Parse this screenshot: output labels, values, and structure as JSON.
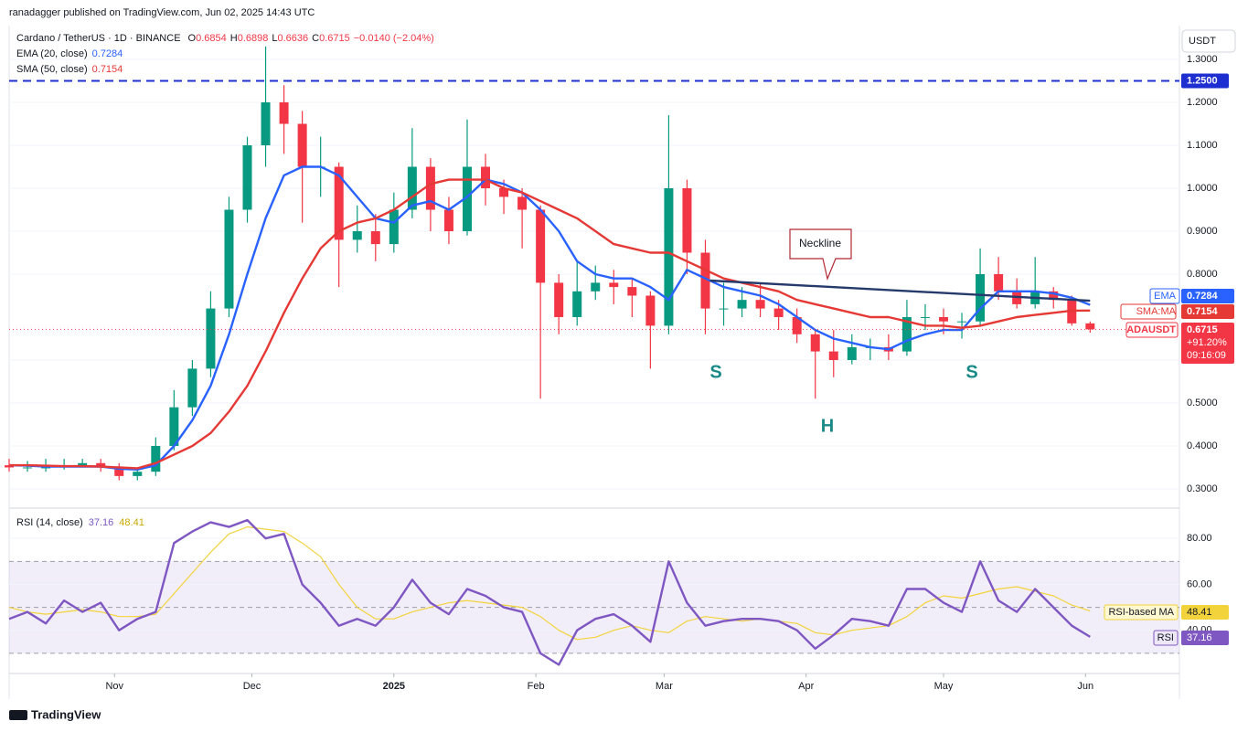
{
  "header": {
    "publisher": "ranadagger published on TradingView.com, Jun 02, 2025 14:43 UTC",
    "footer": "TradingView"
  },
  "chart_data": [
    {
      "type": "candlestick",
      "title": "Cardano / TetherUS · 1D · BINANCE",
      "legend_prefixes": [
        "O",
        "H",
        "L",
        "C"
      ],
      "change": "−0.0140 (−2.04%)",
      "currency": "USDT",
      "up_color": "#089981",
      "down_color": "#f23645",
      "grid": true,
      "x": [
        0,
        4,
        8,
        12,
        16,
        20,
        24,
        28,
        32,
        36,
        40,
        44,
        48,
        52,
        56,
        60,
        64,
        68,
        72,
        76,
        80,
        84,
        88,
        92,
        96,
        100,
        104,
        108,
        112,
        116,
        120,
        124,
        128,
        132,
        136,
        140,
        144,
        148,
        152,
        156,
        160,
        164,
        168,
        172,
        176,
        180,
        184,
        188,
        192,
        196,
        200,
        204,
        208,
        212,
        216,
        220,
        224,
        228,
        232,
        236
      ],
      "open": [
        0.355,
        0.35,
        0.35,
        0.35,
        0.355,
        0.36,
        0.35,
        0.33,
        0.34,
        0.4,
        0.49,
        0.58,
        0.72,
        0.95,
        1.1,
        1.2,
        1.15,
        1.05,
        1.05,
        0.88,
        0.9,
        0.87,
        0.95,
        1.05,
        0.95,
        0.9,
        1.05,
        1.0,
        0.98,
        0.95,
        0.78,
        0.7,
        0.76,
        0.78,
        0.77,
        0.75,
        0.68,
        1.0,
        0.85,
        0.72,
        0.72,
        0.74,
        0.72,
        0.7,
        0.66,
        0.62,
        0.6,
        0.63,
        0.63,
        0.62,
        0.7,
        0.7,
        0.69,
        0.69,
        0.8,
        0.76,
        0.73,
        0.76,
        0.74,
        0.6854
      ],
      "high": [
        0.37,
        0.365,
        0.37,
        0.37,
        0.37,
        0.37,
        0.36,
        0.35,
        0.42,
        0.53,
        0.6,
        0.76,
        0.98,
        1.12,
        1.33,
        1.24,
        1.18,
        1.12,
        1.06,
        0.96,
        0.94,
        0.99,
        1.14,
        1.07,
        0.98,
        1.16,
        1.08,
        1.02,
        1.0,
        0.96,
        0.8,
        0.83,
        0.82,
        0.81,
        0.79,
        0.76,
        1.17,
        1.02,
        0.88,
        0.78,
        0.77,
        0.78,
        0.74,
        0.72,
        0.67,
        0.67,
        0.66,
        0.65,
        0.66,
        0.74,
        0.73,
        0.72,
        0.71,
        0.86,
        0.84,
        0.79,
        0.84,
        0.77,
        0.75,
        0.6898
      ],
      "low": [
        0.34,
        0.34,
        0.34,
        0.345,
        0.35,
        0.34,
        0.32,
        0.32,
        0.33,
        0.39,
        0.47,
        0.56,
        0.7,
        0.92,
        1.05,
        1.08,
        0.92,
        0.98,
        0.77,
        0.85,
        0.83,
        0.85,
        0.93,
        0.9,
        0.87,
        0.89,
        0.96,
        0.94,
        0.86,
        0.51,
        0.66,
        0.68,
        0.74,
        0.73,
        0.7,
        0.58,
        0.66,
        0.8,
        0.66,
        0.68,
        0.7,
        0.7,
        0.67,
        0.64,
        0.51,
        0.56,
        0.59,
        0.6,
        0.6,
        0.61,
        0.67,
        0.66,
        0.65,
        0.68,
        0.74,
        0.72,
        0.72,
        0.72,
        0.68,
        0.6636
      ],
      "close": [
        0.35,
        0.35,
        0.35,
        0.355,
        0.36,
        0.35,
        0.33,
        0.34,
        0.4,
        0.49,
        0.58,
        0.72,
        0.95,
        1.1,
        1.2,
        1.15,
        1.05,
        1.05,
        0.88,
        0.9,
        0.87,
        0.95,
        1.05,
        0.95,
        0.9,
        1.05,
        1.0,
        0.98,
        0.95,
        0.78,
        0.7,
        0.76,
        0.78,
        0.77,
        0.75,
        0.68,
        1.0,
        0.85,
        0.72,
        0.72,
        0.74,
        0.72,
        0.7,
        0.66,
        0.62,
        0.6,
        0.63,
        0.63,
        0.62,
        0.7,
        0.7,
        0.69,
        0.69,
        0.8,
        0.76,
        0.73,
        0.76,
        0.74,
        0.6854,
        0.6715
      ],
      "series": [
        {
          "name": "EMA (20, close)",
          "tag": "EMA",
          "color": "#2962ff",
          "values": [
            0.355,
            0.354,
            0.352,
            0.352,
            0.352,
            0.352,
            0.347,
            0.345,
            0.355,
            0.4,
            0.46,
            0.54,
            0.66,
            0.8,
            0.93,
            1.03,
            1.05,
            1.05,
            1.03,
            0.98,
            0.93,
            0.92,
            0.96,
            0.97,
            0.95,
            0.98,
            1.02,
            1.01,
            0.99,
            0.95,
            0.9,
            0.83,
            0.8,
            0.79,
            0.79,
            0.77,
            0.74,
            0.81,
            0.79,
            0.77,
            0.76,
            0.75,
            0.73,
            0.7,
            0.67,
            0.65,
            0.64,
            0.63,
            0.625,
            0.645,
            0.66,
            0.67,
            0.67,
            0.72,
            0.76,
            0.76,
            0.76,
            0.755,
            0.745,
            0.7284
          ]
        },
        {
          "name": "SMA (50, close)",
          "tag": "SMA:MA",
          "color": "#e53935",
          "values": [
            0.355,
            0.355,
            0.354,
            0.353,
            0.353,
            0.352,
            0.35,
            0.348,
            0.36,
            0.38,
            0.4,
            0.43,
            0.48,
            0.54,
            0.62,
            0.71,
            0.79,
            0.86,
            0.9,
            0.92,
            0.93,
            0.95,
            0.98,
            1.01,
            1.02,
            1.02,
            1.02,
            1.0,
            0.99,
            0.97,
            0.95,
            0.93,
            0.9,
            0.87,
            0.86,
            0.85,
            0.85,
            0.83,
            0.81,
            0.79,
            0.78,
            0.77,
            0.76,
            0.74,
            0.73,
            0.72,
            0.71,
            0.7,
            0.7,
            0.69,
            0.68,
            0.68,
            0.675,
            0.68,
            0.69,
            0.7,
            0.705,
            0.71,
            0.715,
            0.7154
          ]
        }
      ],
      "last_price_tag": {
        "name": "ADAUSDT",
        "change": "+91.20%",
        "countdown": "09:16:09"
      },
      "level": {
        "value": 1.25,
        "label": "1.2500",
        "color": "#1d2fd0"
      },
      "neckline": {
        "label": "Neckline",
        "x": [
          153,
          236
        ],
        "values": [
          0.785,
          0.738
        ],
        "color": "#253a6b"
      },
      "annotations": [
        "S",
        "H",
        "S"
      ],
      "xlim": [
        0,
        255.5
      ],
      "ylim": [
        0.2574,
        1.3745
      ],
      "yticks": [
        {
          "value": 0.3,
          "label": "0.3000"
        },
        {
          "value": 0.4,
          "label": "0.4000"
        },
        {
          "value": 0.5,
          "label": "0.5000"
        },
        {
          "value": 0.6,
          "label": "0.6000"
        },
        {
          "value": 0.8,
          "label": "0.8000"
        },
        {
          "value": 0.9,
          "label": "0.9000"
        },
        {
          "value": 1.0,
          "label": "1.0000"
        },
        {
          "value": 1.1,
          "label": "1.1000"
        },
        {
          "value": 1.2,
          "label": "1.2000"
        },
        {
          "value": 1.3,
          "label": "1.3000"
        }
      ]
    },
    {
      "type": "line",
      "title": "RSI (14, close)",
      "x": [
        0,
        4,
        8,
        12,
        16,
        20,
        24,
        28,
        32,
        36,
        40,
        44,
        48,
        52,
        56,
        60,
        64,
        68,
        72,
        76,
        80,
        84,
        88,
        92,
        96,
        100,
        104,
        108,
        112,
        116,
        120,
        124,
        128,
        132,
        136,
        140,
        144,
        148,
        152,
        156,
        160,
        164,
        168,
        172,
        176,
        180,
        184,
        188,
        192,
        196,
        200,
        204,
        208,
        212,
        216,
        220,
        224,
        228,
        232,
        236
      ],
      "series": [
        {
          "name": "RSI",
          "color": "#7e57c2",
          "values": [
            45,
            48,
            43,
            53,
            48,
            52,
            40,
            45,
            48,
            78,
            83,
            87,
            85,
            88,
            80,
            82,
            60,
            52,
            42,
            45,
            42,
            50,
            62,
            52,
            47,
            58,
            55,
            50,
            48,
            30,
            25,
            40,
            45,
            47,
            42,
            35,
            70,
            52,
            42,
            44,
            45,
            45,
            44,
            40,
            32,
            38,
            45,
            44,
            42,
            58,
            58,
            52,
            48,
            70,
            53,
            48,
            58,
            50,
            42,
            37.16
          ]
        },
        {
          "name": "RSI-based MA",
          "color": "#f2d33c",
          "values": [
            50,
            48,
            47,
            48,
            49,
            48,
            46,
            46,
            47,
            56,
            65,
            74,
            82,
            85,
            84,
            83,
            78,
            72,
            60,
            50,
            45,
            45,
            48,
            50,
            52,
            53,
            52,
            51,
            50,
            46,
            40,
            36,
            37,
            40,
            42,
            40,
            39,
            44,
            46,
            45,
            44,
            45,
            44,
            43,
            39,
            38,
            40,
            41,
            42,
            46,
            52,
            55,
            54,
            56,
            58,
            59,
            57,
            55,
            51,
            48.41
          ]
        }
      ],
      "bands": [
        70,
        50,
        30
      ],
      "xlim": [
        0,
        255.5
      ],
      "ylim": [
        21.2,
        92.8
      ],
      "yticks": [
        {
          "value": 40,
          "label": "40.00"
        },
        {
          "value": 60,
          "label": "60.00"
        },
        {
          "value": 80,
          "label": "80.00"
        }
      ],
      "xticks": [
        {
          "value": 23,
          "label": "Nov"
        },
        {
          "value": 53,
          "label": "Dec"
        },
        {
          "value": 84,
          "label": "2025"
        },
        {
          "value": 115,
          "label": "Feb"
        },
        {
          "value": 143,
          "label": "Mar"
        },
        {
          "value": 174,
          "label": "Apr"
        },
        {
          "value": 204,
          "label": "May"
        },
        {
          "value": 235,
          "label": "Jun"
        }
      ]
    }
  ]
}
